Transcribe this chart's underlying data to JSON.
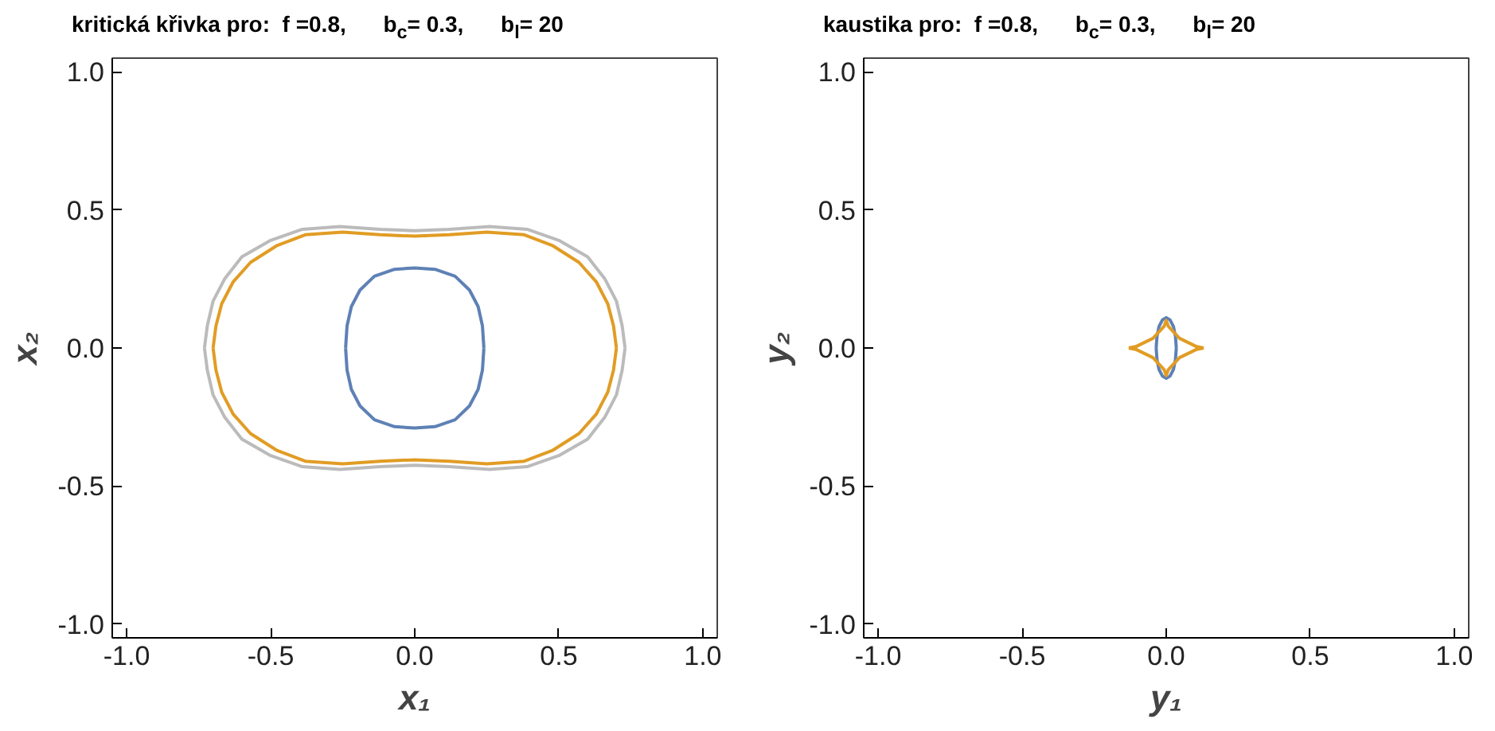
{
  "chart_data": [
    {
      "type": "line",
      "title": "kritická křivka pro:  f =0.8,      b$_{c}$= 0.3,      b$_{l}$= 20",
      "xlabel": "x₁",
      "ylabel": "x₂",
      "xlim": [
        -1.05,
        1.05
      ],
      "ylim": [
        -1.05,
        1.05
      ],
      "xticks": [
        {
          "value": -1,
          "label": "-1.0"
        },
        {
          "value": -0.5,
          "label": "-0.5"
        },
        {
          "value": 0,
          "label": "0.0"
        },
        {
          "value": 0.5,
          "label": "0.5"
        },
        {
          "value": 1,
          "label": "1.0"
        }
      ],
      "yticks": [
        {
          "value": -1,
          "label": "-1.0"
        },
        {
          "value": -0.5,
          "label": "-0.5"
        },
        {
          "value": 0,
          "label": "0.0"
        },
        {
          "value": 0.5,
          "label": "0.5"
        },
        {
          "value": 1,
          "label": "1.0"
        }
      ],
      "grid": false,
      "series": [
        {
          "color": "#bbbbbb",
          "x": [
            -0.73,
            -0.72,
            -0.7,
            -0.66,
            -0.6,
            -0.5,
            -0.39,
            -0.26,
            -0.12,
            0,
            0.12,
            0.26,
            0.39,
            0.5,
            0.6,
            0.66,
            0.7,
            0.72,
            0.73,
            null,
            -0.73,
            -0.72,
            -0.7,
            -0.66,
            -0.6,
            -0.5,
            -0.39,
            -0.26,
            -0.12,
            0,
            0.12,
            0.26,
            0.39,
            0.5,
            0.6,
            0.66,
            0.7,
            0.72,
            0.73
          ],
          "values": [
            0,
            0.08,
            0.17,
            0.25,
            0.33,
            0.39,
            0.43,
            0.44,
            0.43,
            0.425,
            0.43,
            0.44,
            0.43,
            0.39,
            0.33,
            0.25,
            0.17,
            0.08,
            0,
            null,
            0,
            -0.08,
            -0.17,
            -0.25,
            -0.33,
            -0.39,
            -0.43,
            -0.44,
            -0.43,
            -0.425,
            -0.43,
            -0.44,
            -0.43,
            -0.39,
            -0.33,
            -0.25,
            -0.17,
            -0.08,
            0
          ]
        },
        {
          "color": "#e19c24",
          "x": [
            -0.7,
            -0.69,
            -0.67,
            -0.63,
            -0.57,
            -0.48,
            -0.38,
            -0.25,
            -0.12,
            0,
            0.12,
            0.25,
            0.38,
            0.48,
            0.57,
            0.63,
            0.67,
            0.69,
            0.7,
            null,
            -0.7,
            -0.69,
            -0.67,
            -0.63,
            -0.57,
            -0.48,
            -0.38,
            -0.25,
            -0.12,
            0,
            0.12,
            0.25,
            0.38,
            0.48,
            0.57,
            0.63,
            0.67,
            0.69,
            0.7
          ],
          "values": [
            0,
            0.08,
            0.16,
            0.24,
            0.31,
            0.37,
            0.41,
            0.42,
            0.41,
            0.405,
            0.41,
            0.42,
            0.41,
            0.37,
            0.31,
            0.24,
            0.16,
            0.08,
            0,
            null,
            0,
            -0.08,
            -0.16,
            -0.24,
            -0.31,
            -0.37,
            -0.41,
            -0.42,
            -0.41,
            -0.405,
            -0.41,
            -0.42,
            -0.41,
            -0.37,
            -0.31,
            -0.24,
            -0.16,
            -0.08,
            0
          ]
        },
        {
          "color": "#5e81b5",
          "x": [
            -0.24,
            -0.235,
            -0.22,
            -0.19,
            -0.14,
            -0.07,
            0,
            0.07,
            0.14,
            0.19,
            0.22,
            0.235,
            0.24,
            null,
            -0.24,
            -0.235,
            -0.22,
            -0.19,
            -0.14,
            -0.07,
            0,
            0.07,
            0.14,
            0.19,
            0.22,
            0.235,
            0.24
          ],
          "values": [
            0,
            0.08,
            0.15,
            0.21,
            0.26,
            0.285,
            0.29,
            0.285,
            0.26,
            0.21,
            0.15,
            0.08,
            0,
            null,
            0,
            -0.08,
            -0.15,
            -0.21,
            -0.26,
            -0.285,
            -0.29,
            -0.285,
            -0.26,
            -0.21,
            -0.15,
            -0.08,
            0
          ]
        }
      ]
    },
    {
      "type": "line",
      "title": "kaustika pro:  f =0.8,      b$_{c}$= 0.3,      b$_{l}$= 20",
      "xlabel": "y₁",
      "ylabel": "y₂",
      "xlim": [
        -1.05,
        1.05
      ],
      "ylim": [
        -1.05,
        1.05
      ],
      "xticks": [
        {
          "value": -1,
          "label": "-1.0"
        },
        {
          "value": -0.5,
          "label": "-0.5"
        },
        {
          "value": 0,
          "label": "0.0"
        },
        {
          "value": 0.5,
          "label": "0.5"
        },
        {
          "value": 1,
          "label": "1.0"
        }
      ],
      "yticks": [
        {
          "value": -1,
          "label": "-1.0"
        },
        {
          "value": -0.5,
          "label": "-0.5"
        },
        {
          "value": 0,
          "label": "0.0"
        },
        {
          "value": 0.5,
          "label": "0.5"
        },
        {
          "value": 1,
          "label": "1.0"
        }
      ],
      "grid": false,
      "series": [
        {
          "color": "#5e81b5",
          "x": [
            -0.035,
            -0.032,
            -0.025,
            -0.013,
            0,
            0.013,
            0.025,
            0.032,
            0.035,
            null,
            -0.035,
            -0.032,
            -0.025,
            -0.013,
            0,
            0.013,
            0.025,
            0.032,
            0.035
          ],
          "values": [
            0,
            0.042,
            0.078,
            0.102,
            0.11,
            0.102,
            0.078,
            0.042,
            0,
            null,
            0,
            -0.042,
            -0.078,
            -0.102,
            -0.11,
            -0.102,
            -0.078,
            -0.042,
            0
          ]
        },
        {
          "color": "#e19c24",
          "x": [
            -0.13,
            -0.103,
            -0.046,
            -0.007,
            0,
            0.007,
            0.046,
            0.103,
            0.13,
            null,
            -0.13,
            -0.103,
            -0.046,
            -0.007,
            0,
            0.007,
            0.046,
            0.103,
            0.13
          ],
          "values": [
            0,
            0.006,
            0.035,
            0.079,
            0.1,
            0.079,
            0.035,
            0.006,
            0,
            null,
            0,
            -0.006,
            -0.035,
            -0.079,
            -0.1,
            -0.079,
            -0.035,
            -0.006,
            0
          ]
        }
      ]
    }
  ]
}
